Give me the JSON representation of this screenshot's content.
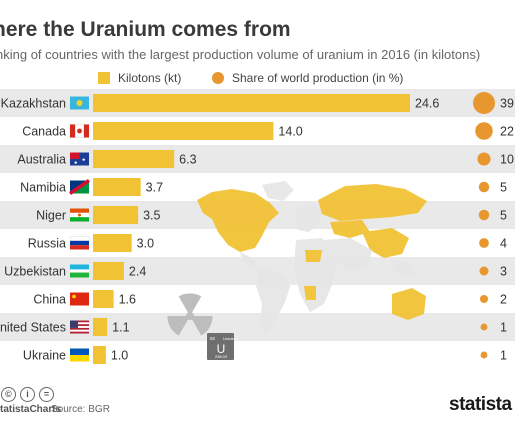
{
  "header": {
    "title": "here the Uranium comes from",
    "subtitle": "nking of countries with the largest production volume of uranium in 2016 (in kilotons)"
  },
  "legend": {
    "bar_label": "Kilotons (kt)",
    "circle_label": "Share of world production (in %)"
  },
  "colors": {
    "bar": "#f2c235",
    "circle": "#e8962e",
    "band": "#e9e9e9",
    "map": "#f2c235",
    "map_gray": "#e6e6e6"
  },
  "chart_data": {
    "type": "bar",
    "title": "here the Uranium comes from",
    "subtitle": "nking of countries with the largest production volume of uranium in 2016 (in kilotons)",
    "categories": [
      "Kazakhstan",
      "Canada",
      "Australia",
      "Namibia",
      "Niger",
      "Russia",
      "Uzbekistan",
      "China",
      "nited States",
      "Ukraine"
    ],
    "series": [
      {
        "name": "Kilotons (kt)",
        "values": [
          24.6,
          14.0,
          6.3,
          3.7,
          3.5,
          3.0,
          2.4,
          1.6,
          1.1,
          1.0
        ]
      },
      {
        "name": "Share of world production (in %)",
        "values": [
          39,
          22,
          10,
          5,
          5,
          4,
          3,
          2,
          1,
          1
        ]
      }
    ],
    "value_labels": [
      "24.6",
      "14.0",
      "6.3",
      "3.7",
      "3.5",
      "3.0",
      "2.4",
      "1.6",
      "1.1",
      "1.0"
    ],
    "share_labels": [
      "39",
      "22",
      "10",
      "5",
      "5",
      "4",
      "3",
      "2",
      "1",
      "1"
    ],
    "grid": false,
    "legend_position": "top"
  },
  "element_tile": {
    "atomic_number": "92",
    "name": "Uranium",
    "symbol": "U",
    "mass": "238.03"
  },
  "footer": {
    "icons": [
      "creative-commons-icon",
      "attribution-icon",
      "no-derivatives-icon"
    ],
    "brand_small": "tatistaCharts",
    "source": "Source: BGR",
    "logo": "statista"
  }
}
